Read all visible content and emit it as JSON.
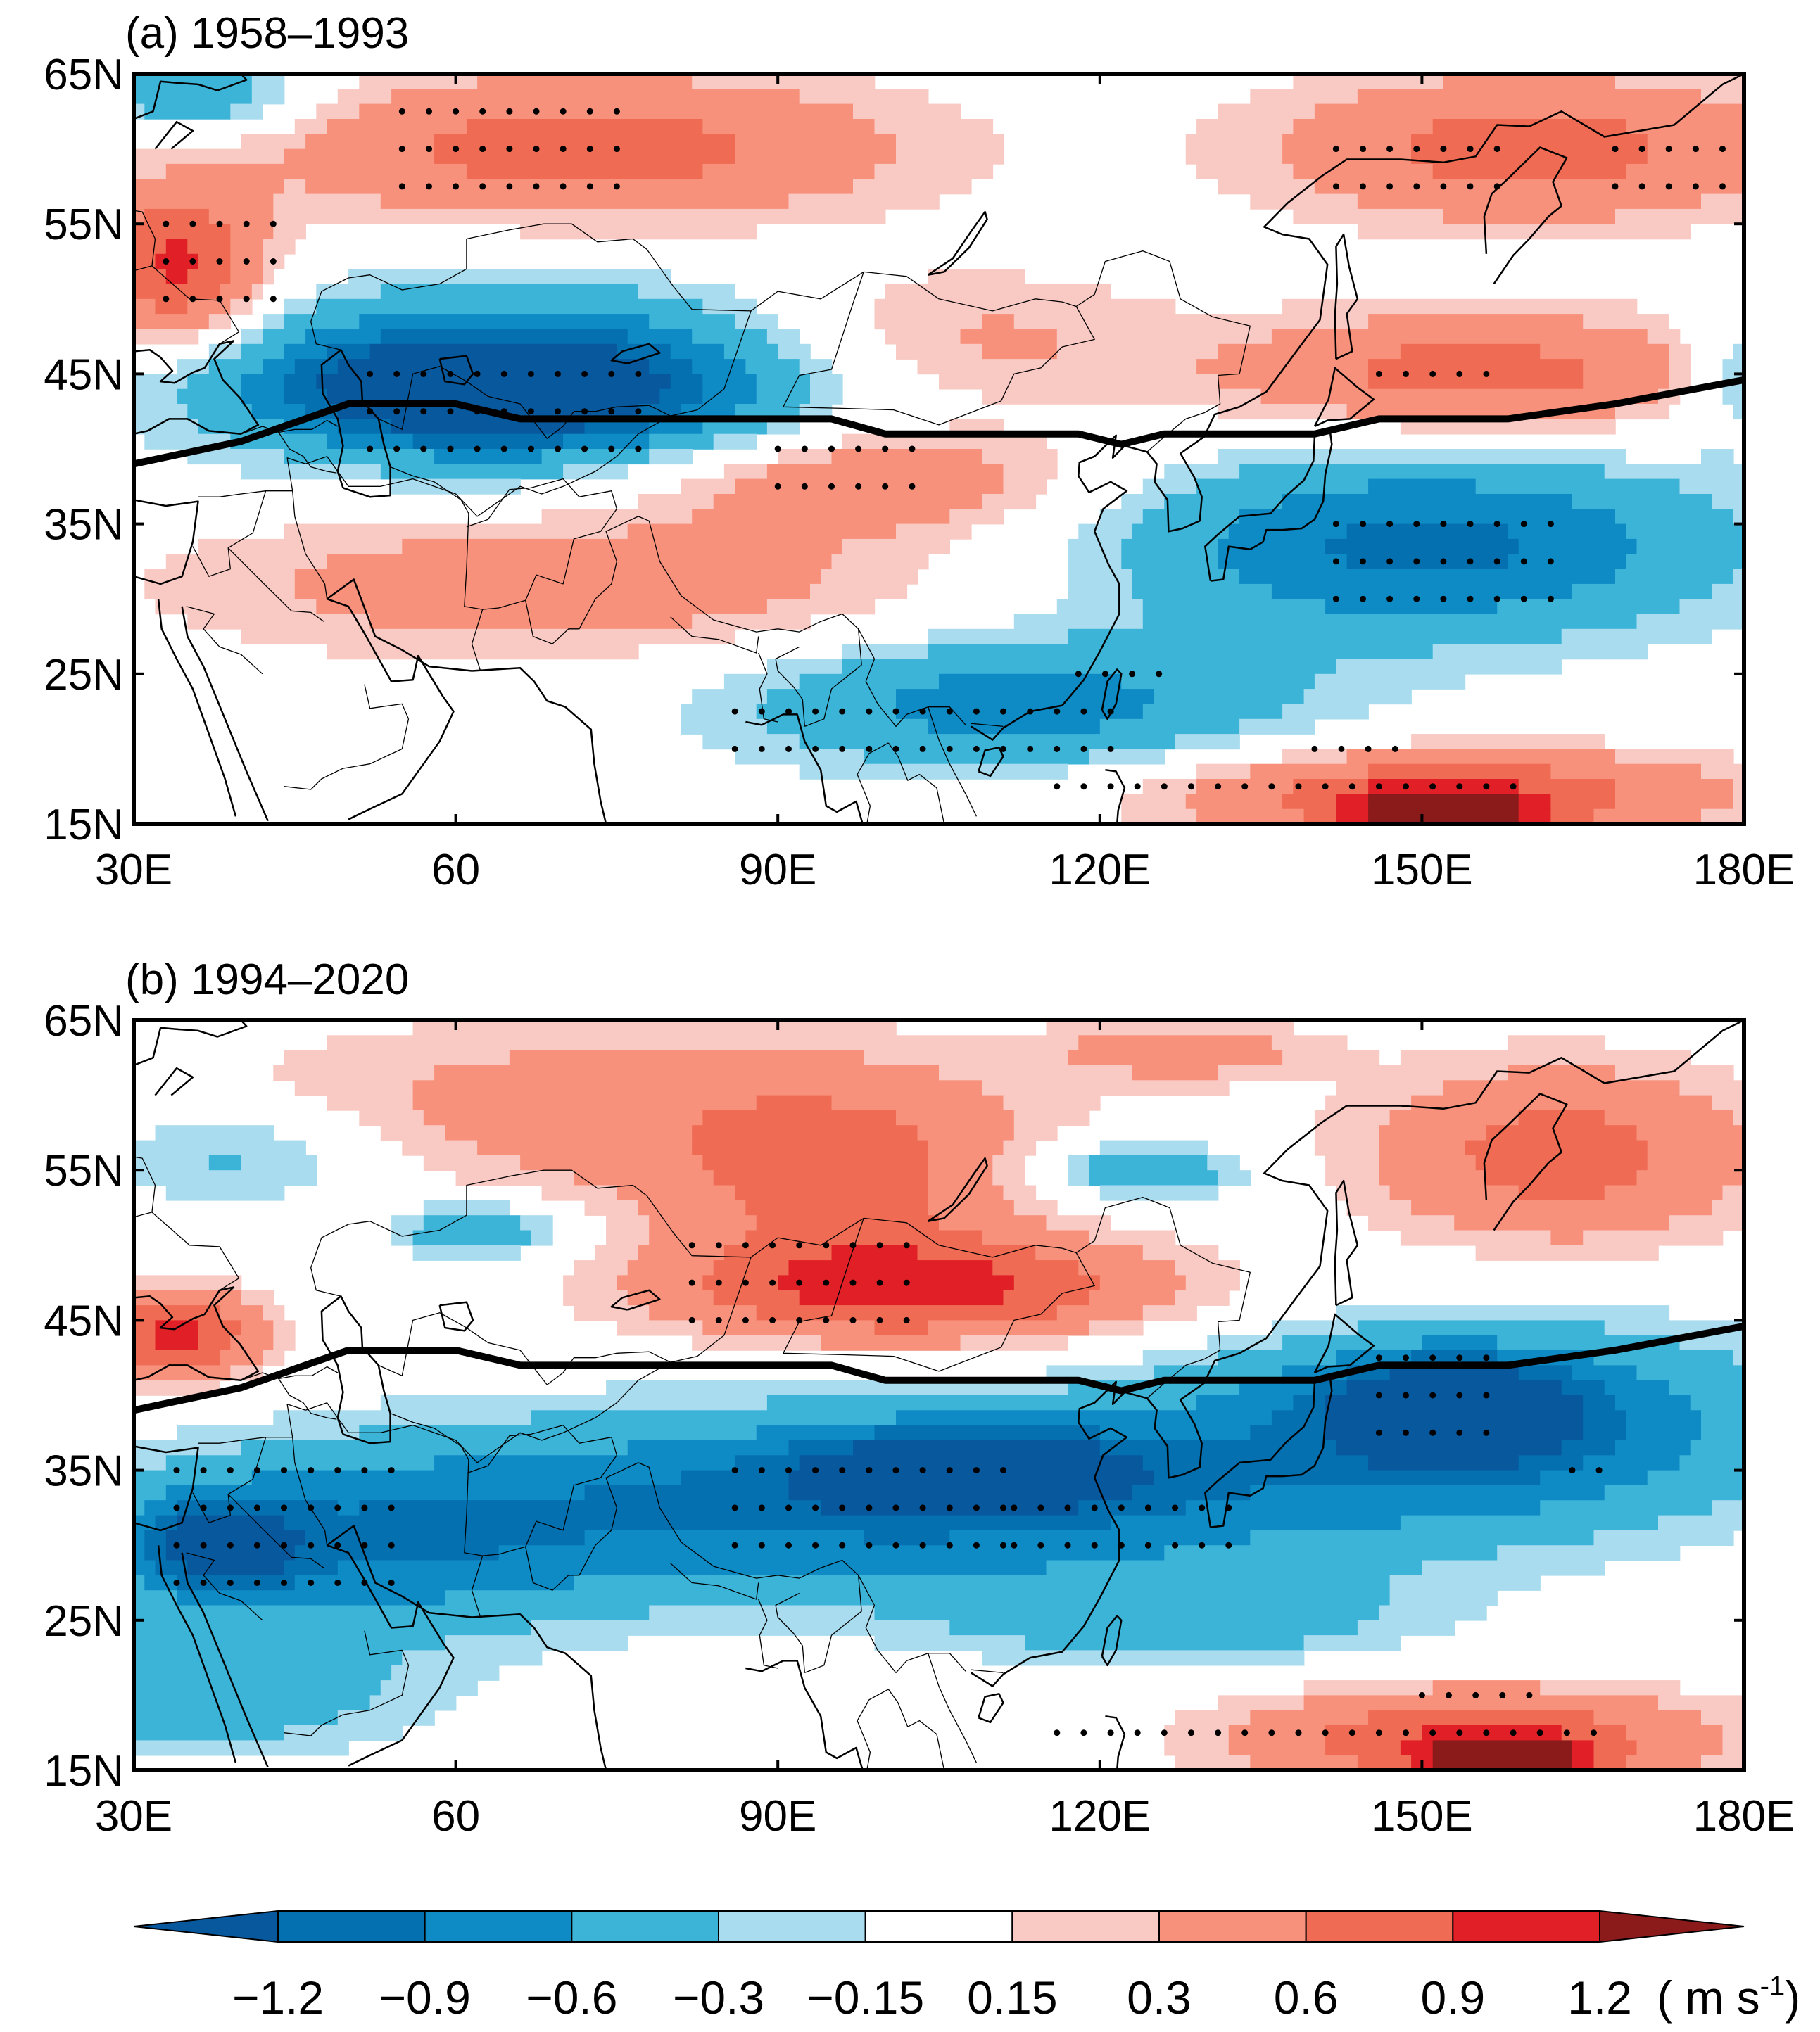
{
  "panels": [
    {
      "title": "(a) 1958–1993",
      "period": "1958–1993",
      "blobs": [
        {
          "lon": 68,
          "lat": 44.5,
          "rlon": 30,
          "rlat": 6,
          "v": -1.05
        },
        {
          "lon": 62,
          "lat": 44,
          "rlon": 16,
          "rlat": 3.2,
          "v": -1.3
        },
        {
          "lon": 150,
          "lat": 33.5,
          "rlon": 28,
          "rlat": 6,
          "v": -1.0
        },
        {
          "lon": 112,
          "lat": 23,
          "rlon": 26,
          "rlat": 4.5,
          "v": -0.75
        },
        {
          "lon": 36,
          "lat": 63.5,
          "rlon": 10,
          "rlat": 2.5,
          "v": -0.6
        },
        {
          "lon": 179,
          "lat": 45,
          "rlon": 5,
          "rlat": 4,
          "v": -0.45
        },
        {
          "lon": 72,
          "lat": 60,
          "rlon": 30,
          "rlat": 5,
          "v": 0.75
        },
        {
          "lon": 34,
          "lat": 52,
          "rlon": 8,
          "rlat": 5,
          "v": 1.0
        },
        {
          "lon": 160,
          "lat": 60,
          "rlon": 24,
          "rlat": 5,
          "v": 0.75
        },
        {
          "lon": 155,
          "lat": 45,
          "rlon": 24,
          "rlat": 4,
          "v": 0.75
        },
        {
          "lon": 98,
          "lat": 38,
          "rlon": 20,
          "rlat": 3.5,
          "v": 0.6
        },
        {
          "lon": 70,
          "lat": 31,
          "rlon": 36,
          "rlat": 5,
          "v": 0.5
        },
        {
          "lon": 105,
          "lat": 47,
          "rlon": 20,
          "rlat": 5,
          "v": 0.45
        },
        {
          "lon": 152,
          "lat": 17,
          "rlon": 26,
          "rlat": 3,
          "v": 0.9
        },
        {
          "lon": 152,
          "lat": 15.5,
          "rlon": 8,
          "rlat": 1.5,
          "v": 1.3
        }
      ],
      "stipple": [
        {
          "lon0": 55,
          "lon1": 75,
          "lat0": 57.5,
          "lat1": 62.5
        },
        {
          "lon0": 142,
          "lon1": 158,
          "lat0": 57.5,
          "lat1": 60
        },
        {
          "lon0": 168,
          "lon1": 178,
          "lat0": 57.5,
          "lat1": 60
        },
        {
          "lon0": 33,
          "lon1": 45,
          "lat0": 50,
          "lat1": 55
        },
        {
          "lon0": 52,
          "lon1": 78,
          "lat0": 40,
          "lat1": 45
        },
        {
          "lon0": 90,
          "lon1": 104,
          "lat0": 37.5,
          "lat1": 40
        },
        {
          "lon0": 142,
          "lon1": 162,
          "lat0": 30,
          "lat1": 35
        },
        {
          "lon0": 146,
          "lon1": 158,
          "lat0": 45,
          "lat1": 45
        },
        {
          "lon0": 86,
          "lon1": 122,
          "lat0": 20,
          "lat1": 22.5
        },
        {
          "lon0": 118,
          "lon1": 126,
          "lat0": 25,
          "lat1": 25
        },
        {
          "lon0": 116,
          "lon1": 160,
          "lat0": 17.5,
          "lat1": 17.5
        },
        {
          "lon0": 140,
          "lon1": 148,
          "lat0": 20,
          "lat1": 20
        }
      ]
    },
    {
      "title": "(b) 1994–2020",
      "period": "1994–2020",
      "blobs": [
        {
          "lon": 100,
          "lat": 33,
          "rlon": 42,
          "rlat": 6,
          "v": -1.0
        },
        {
          "lon": 108,
          "lat": 35,
          "rlon": 14,
          "rlat": 2.5,
          "v": -1.3
        },
        {
          "lon": 155,
          "lat": 38,
          "rlon": 28,
          "rlat": 6.5,
          "v": -1.0
        },
        {
          "lon": 153,
          "lat": 39,
          "rlon": 10,
          "rlat": 3,
          "v": -1.3
        },
        {
          "lon": 50,
          "lat": 30,
          "rlon": 26,
          "rlat": 6,
          "v": -0.75
        },
        {
          "lon": 38,
          "lat": 30,
          "rlon": 7,
          "rlat": 3,
          "v": -1.05
        },
        {
          "lon": 36,
          "lat": 20,
          "rlon": 20,
          "rlat": 4,
          "v": -0.5
        },
        {
          "lon": 128,
          "lat": 25,
          "rlon": 22,
          "rlat": 3,
          "v": -0.45
        },
        {
          "lon": 40,
          "lat": 56,
          "rlon": 14,
          "rlat": 3.5,
          "v": -0.45
        },
        {
          "lon": 62,
          "lat": 51,
          "rlon": 8,
          "rlat": 2,
          "v": -0.6
        },
        {
          "lon": 124,
          "lat": 55,
          "rlon": 10,
          "rlat": 2,
          "v": -0.6
        },
        {
          "lon": 103,
          "lat": 47,
          "rlon": 24,
          "rlat": 3.5,
          "v": 1.0
        },
        {
          "lon": 75,
          "lat": 59,
          "rlon": 38,
          "rlat": 6,
          "v": 0.45
        },
        {
          "lon": 96,
          "lat": 54,
          "rlon": 16,
          "rlat": 6,
          "v": 0.6
        },
        {
          "lon": 34,
          "lat": 44,
          "rlon": 8,
          "rlat": 3,
          "v": 1.0
        },
        {
          "lon": 163,
          "lat": 56,
          "rlon": 18,
          "rlat": 6,
          "v": 0.75
        },
        {
          "lon": 128,
          "lat": 63,
          "rlon": 12,
          "rlat": 2,
          "v": 0.45
        },
        {
          "lon": 155,
          "lat": 17,
          "rlon": 22,
          "rlat": 3.5,
          "v": 0.9
        },
        {
          "lon": 158,
          "lat": 15.5,
          "rlon": 7,
          "rlat": 1.5,
          "v": 1.3
        }
      ],
      "stipple": [
        {
          "lon0": 82,
          "lon1": 104,
          "lat0": 45,
          "lat1": 50
        },
        {
          "lon0": 86,
          "lon1": 112,
          "lat0": 30,
          "lat1": 35
        },
        {
          "lon0": 112,
          "lon1": 134,
          "lat0": 30,
          "lat1": 32.5
        },
        {
          "lon0": 34,
          "lon1": 56,
          "lat0": 27.5,
          "lat1": 35
        },
        {
          "lon0": 146,
          "lon1": 158,
          "lat0": 37.5,
          "lat1": 42.5
        },
        {
          "lon0": 164,
          "lon1": 168,
          "lat0": 35,
          "lat1": 35
        },
        {
          "lon0": 116,
          "lon1": 166,
          "lat0": 17.5,
          "lat1": 17.5
        },
        {
          "lon0": 150,
          "lon1": 160,
          "lat0": 20,
          "lat1": 20
        }
      ]
    }
  ],
  "jet_axis": {
    "lon": [
      30,
      40,
      50,
      60,
      66,
      80,
      95,
      100,
      118,
      122,
      126,
      140,
      146,
      158,
      168,
      180
    ],
    "lat": [
      39,
      40.5,
      43,
      43,
      42,
      42,
      42,
      41,
      41,
      40.3,
      41,
      41,
      42,
      42,
      43,
      44.6
    ]
  },
  "axes": {
    "x_ticks": [
      "30E",
      "60",
      "90E",
      "120E",
      "150E",
      "180E"
    ],
    "x_values": [
      30,
      60,
      90,
      120,
      150,
      180
    ],
    "y_ticks": [
      "65N",
      "55N",
      "45N",
      "35N",
      "25N",
      "15N"
    ],
    "y_values": [
      65,
      55,
      45,
      35,
      25,
      15
    ],
    "lon_range": [
      30,
      180
    ],
    "lat_range": [
      15,
      65
    ]
  },
  "colorbar": {
    "labels": [
      "−1.2",
      "−0.9",
      "−0.6",
      "−0.3",
      "−0.15",
      "0.15",
      "0.3",
      "0.6",
      "0.9",
      "1.2"
    ],
    "unit_label": "( m s",
    "unit_exp": "-1",
    "unit_close": ")",
    "levels": [
      -1.2,
      -0.9,
      -0.6,
      -0.3,
      -0.15,
      0.15,
      0.3,
      0.6,
      0.9,
      1.2
    ],
    "colors": [
      "#08589e",
      "#0570b0",
      "#0e8ac4",
      "#3cb4d8",
      "#a9dcee",
      "#ffffff",
      "#f9c9c3",
      "#f7917b",
      "#ef6b53",
      "#e11f26",
      "#8b1a1a"
    ]
  }
}
